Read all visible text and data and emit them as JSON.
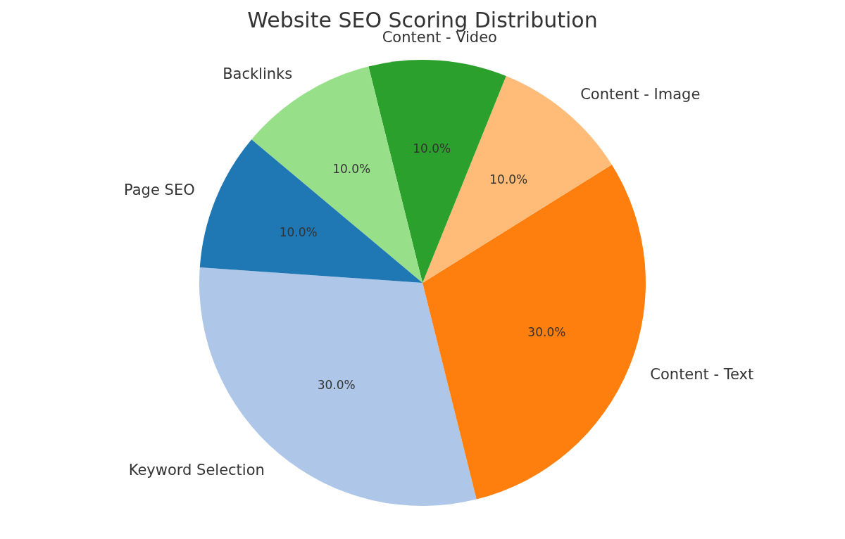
{
  "chart_data": {
    "type": "pie",
    "title": "Website SEO Scoring Distribution",
    "categories": [
      "Keyword Selection",
      "Content - Text",
      "Content - Image",
      "Content - Video",
      "Backlinks",
      "Page SEO"
    ],
    "values": [
      30,
      30,
      10,
      10,
      10,
      10
    ],
    "colors": [
      "#aec7e8",
      "#ff7f0e",
      "#ffbb78",
      "#2ca02c",
      "#98df8a",
      "#1f77b4"
    ],
    "value_labels": [
      "30.0%",
      "30.0%",
      "10.0%",
      "10.0%",
      "10.0%",
      "10.0%"
    ]
  }
}
